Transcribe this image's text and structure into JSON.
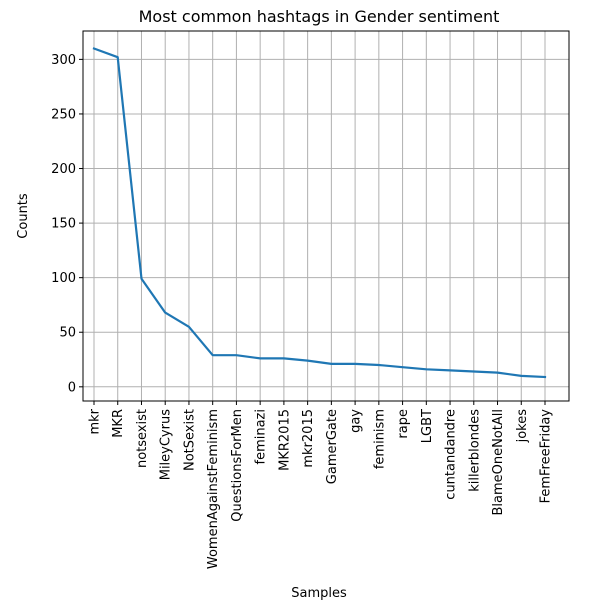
{
  "chart_data": {
    "type": "line",
    "title": "Most common hashtags in Gender sentiment",
    "xlabel": "Samples",
    "ylabel": "Counts",
    "categories": [
      "mkr",
      "MKR",
      "notsexist",
      "MileyCyrus",
      "NotSexist",
      "WomenAgainstFeminism",
      "QuestionsForMen",
      "feminazi",
      "MKR2015",
      "mkr2015",
      "GamerGate",
      "gay",
      "feminism",
      "rape",
      "LGBT",
      "cuntandandre",
      "killerblondes",
      "BlameOneNotAll",
      "jokes",
      "FemFreeFriday"
    ],
    "values": [
      310,
      302,
      99,
      68,
      55,
      29,
      29,
      26,
      26,
      24,
      21,
      21,
      20,
      18,
      16,
      15,
      14,
      13,
      10,
      9
    ],
    "yticks": [
      0,
      50,
      100,
      150,
      200,
      250,
      300
    ],
    "ylim": [
      -13,
      326
    ],
    "grid": true,
    "line_color": "#1f77b4",
    "grid_color": "#b0b0b0"
  }
}
